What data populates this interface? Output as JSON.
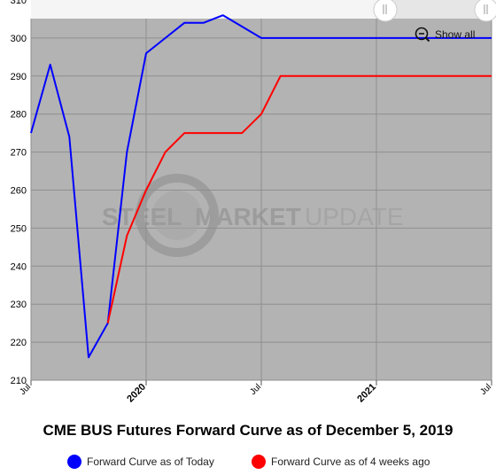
{
  "chart_data": {
    "type": "line",
    "title": "CME BUS Futures Forward Curve as of December 5, 2019",
    "xlabel": "",
    "ylabel": "",
    "ylim": [
      210,
      310
    ],
    "yticks": [
      210,
      220,
      230,
      240,
      250,
      260,
      270,
      280,
      290,
      300,
      310
    ],
    "xlim": [
      "2019-07",
      "2021-07"
    ],
    "x_tick_labels": [
      {
        "label": "Jul",
        "date": "2019-07",
        "bold": false
      },
      {
        "label": "2020",
        "date": "2020-01",
        "bold": true
      },
      {
        "label": "Jul",
        "date": "2020-07",
        "bold": false
      },
      {
        "label": "2021",
        "date": "2021-01",
        "bold": true
      },
      {
        "label": "Jul",
        "date": "2021-07",
        "bold": false
      }
    ],
    "grid": true,
    "legend_position": "bottom",
    "series": [
      {
        "name": "Forward Curve as of Today",
        "color": "#0000ff",
        "points": [
          {
            "x": "2019-07",
            "y": 275
          },
          {
            "x": "2019-08",
            "y": 293
          },
          {
            "x": "2019-09",
            "y": 274
          },
          {
            "x": "2019-10",
            "y": 216
          },
          {
            "x": "2019-11",
            "y": 225
          },
          {
            "x": "2019-12",
            "y": 270
          },
          {
            "x": "2020-01",
            "y": 296
          },
          {
            "x": "2020-02",
            "y": 300
          },
          {
            "x": "2020-03",
            "y": 304
          },
          {
            "x": "2020-04",
            "y": 304
          },
          {
            "x": "2020-05",
            "y": 306
          },
          {
            "x": "2020-06",
            "y": 303
          },
          {
            "x": "2020-07",
            "y": 300
          },
          {
            "x": "2020-08",
            "y": 300
          },
          {
            "x": "2021-07",
            "y": 300
          }
        ]
      },
      {
        "name": "Forward Curve as of 4 weeks ago",
        "color": "#ff0000",
        "points": [
          {
            "x": "2019-11",
            "y": 225
          },
          {
            "x": "2019-12",
            "y": 248
          },
          {
            "x": "2020-01",
            "y": 260
          },
          {
            "x": "2020-02",
            "y": 270
          },
          {
            "x": "2020-03",
            "y": 275
          },
          {
            "x": "2020-04",
            "y": 275
          },
          {
            "x": "2020-05",
            "y": 275
          },
          {
            "x": "2020-06",
            "y": 275
          },
          {
            "x": "2020-07",
            "y": 280
          },
          {
            "x": "2020-08",
            "y": 290
          },
          {
            "x": "2021-07",
            "y": 290
          }
        ]
      }
    ]
  },
  "controls": {
    "show_all_label": "Show all",
    "zoom_icon": "zoom-out-icon",
    "navigator_handle_icon": "navigator-handle-icon"
  },
  "watermark": {
    "word1": "STEEL",
    "word2": "MARKET",
    "word3": "UPDATE"
  }
}
